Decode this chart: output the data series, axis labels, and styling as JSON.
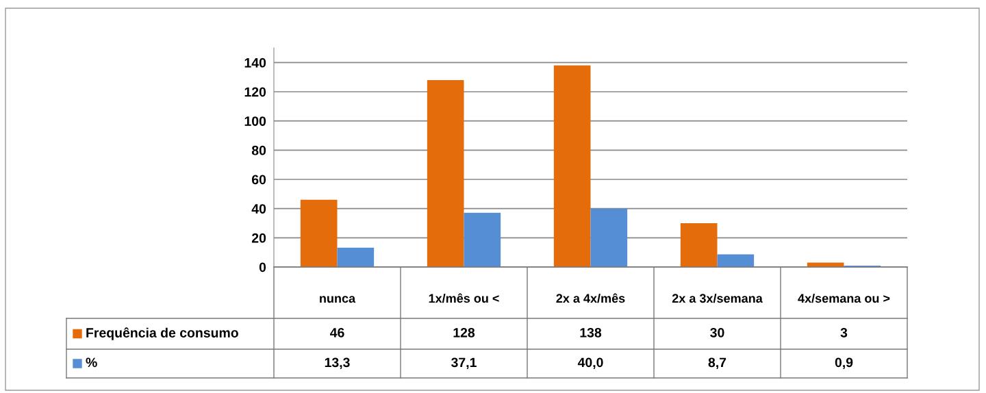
{
  "chart_data": {
    "type": "bar",
    "categories": [
      "nunca",
      "1x/mês ou <",
      "2x a 4x/mês",
      "2x a 3x/semana",
      "4x/semana ou >"
    ],
    "series": [
      {
        "name": "Frequência de consumo",
        "color": "#e46c0a",
        "values": [
          46,
          128,
          138,
          30,
          3
        ],
        "value_labels": [
          "46",
          "128",
          "138",
          "30",
          "3"
        ]
      },
      {
        "name": "%",
        "color": "#558ed5",
        "values": [
          13.3,
          37.1,
          40.0,
          8.7,
          0.9
        ],
        "value_labels": [
          "13,3",
          "37,1",
          "40,0",
          "8,7",
          "0,9"
        ]
      }
    ],
    "ylim": [
      0,
      150
    ],
    "yticks": [
      0,
      20,
      40,
      60,
      80,
      100,
      120,
      140
    ],
    "grid": "y",
    "legend": "bottom"
  }
}
